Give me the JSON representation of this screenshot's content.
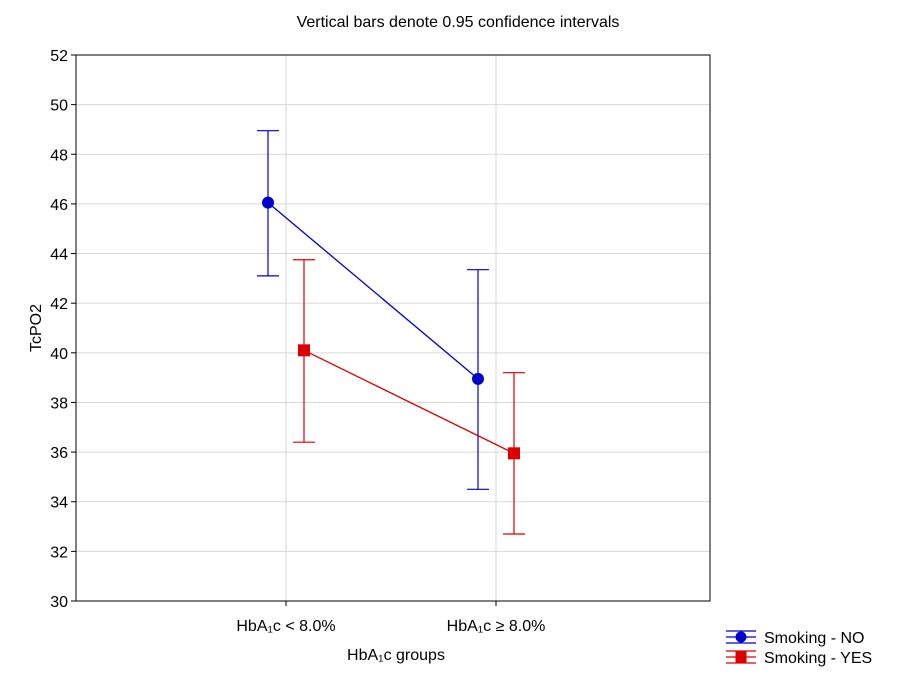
{
  "chart_data": {
    "type": "line",
    "title": "Vertical bars denote 0.95 confidence intervals",
    "xlabel": "HbA₁c groups",
    "ylabel": "TcPO2",
    "categories": [
      "HbA₁c < 8.0%",
      "HbA₁c ≥ 8.0%"
    ],
    "ylim": [
      30,
      52
    ],
    "yticks": [
      30,
      32,
      34,
      36,
      38,
      40,
      42,
      44,
      46,
      48,
      50,
      52
    ],
    "grid": true,
    "legend_position": "bottom-right",
    "error_bars": "0.95 confidence intervals",
    "series": [
      {
        "name": "Smoking - NO",
        "color": "#0000cc",
        "marker": "circle",
        "values": [
          46.05,
          38.95
        ],
        "ci_lower": [
          43.1,
          34.5
        ],
        "ci_upper": [
          48.95,
          43.35
        ]
      },
      {
        "name": "Smoking - YES",
        "color": "#dd0000",
        "marker": "square",
        "values": [
          40.1,
          35.95
        ],
        "ci_lower": [
          36.4,
          32.7
        ],
        "ci_upper": [
          43.75,
          39.2
        ]
      }
    ]
  }
}
